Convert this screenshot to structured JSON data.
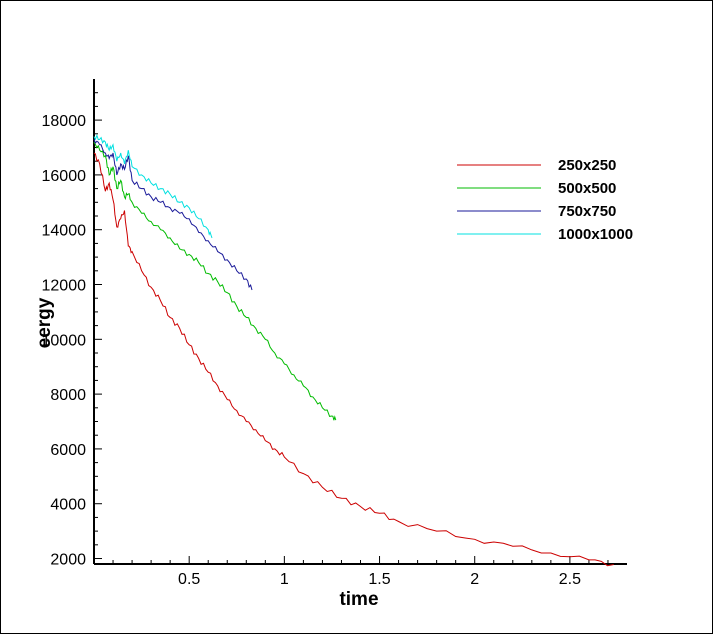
{
  "chart_data": {
    "type": "line",
    "title": "",
    "xlabel": "time",
    "ylabel": "eergy",
    "xlim": [
      0,
      2.8
    ],
    "ylim": [
      1800,
      19500
    ],
    "xticks": [
      0.5,
      1,
      1.5,
      2,
      2.5
    ],
    "xtick_labels": [
      "0.5",
      "1",
      "1.5",
      "2",
      "2.5"
    ],
    "yticks": [
      2000,
      4000,
      6000,
      8000,
      10000,
      12000,
      14000,
      16000,
      18000
    ],
    "ytick_labels": [
      "2000",
      "4000",
      "6000",
      "8000",
      "10000",
      "12000",
      "14000",
      "16000",
      "18000"
    ],
    "grid": false,
    "legend_position": "top-right",
    "series": [
      {
        "name": "250x250",
        "color": "#cc0000",
        "x": [
          0.0,
          0.03,
          0.06,
          0.08,
          0.1,
          0.12,
          0.14,
          0.16,
          0.18,
          0.2,
          0.25,
          0.3,
          0.35,
          0.4,
          0.45,
          0.5,
          0.55,
          0.6,
          0.65,
          0.7,
          0.75,
          0.8,
          0.85,
          0.9,
          0.95,
          1.0,
          1.1,
          1.2,
          1.3,
          1.4,
          1.5,
          1.6,
          1.8,
          2.0,
          2.2,
          2.4,
          2.6,
          2.73
        ],
        "y": [
          16800,
          16400,
          15400,
          15700,
          15100,
          14100,
          14400,
          14700,
          13400,
          13200,
          12500,
          11900,
          11400,
          10800,
          10400,
          9800,
          9300,
          8800,
          8300,
          7800,
          7400,
          7000,
          6700,
          6300,
          6000,
          5700,
          5100,
          4600,
          4200,
          3900,
          3650,
          3350,
          3000,
          2700,
          2450,
          2200,
          1950,
          1780
        ]
      },
      {
        "name": "500x500",
        "color": "#00bb00",
        "x": [
          0.0,
          0.03,
          0.06,
          0.08,
          0.1,
          0.12,
          0.14,
          0.16,
          0.18,
          0.2,
          0.25,
          0.3,
          0.35,
          0.4,
          0.45,
          0.5,
          0.55,
          0.6,
          0.65,
          0.7,
          0.75,
          0.8,
          0.85,
          0.9,
          0.95,
          1.0,
          1.05,
          1.1,
          1.15,
          1.2,
          1.25,
          1.27
        ],
        "y": [
          17200,
          16900,
          16700,
          16000,
          16300,
          15500,
          15800,
          15200,
          15300,
          15000,
          14600,
          14300,
          14000,
          13700,
          13300,
          13100,
          12800,
          12400,
          12100,
          11700,
          11200,
          10800,
          10400,
          10000,
          9500,
          9100,
          8700,
          8300,
          7900,
          7500,
          7200,
          7050
        ]
      },
      {
        "name": "750x750",
        "color": "#1a1a99",
        "x": [
          0.0,
          0.03,
          0.06,
          0.08,
          0.1,
          0.12,
          0.14,
          0.16,
          0.18,
          0.2,
          0.25,
          0.3,
          0.35,
          0.4,
          0.45,
          0.5,
          0.55,
          0.6,
          0.65,
          0.7,
          0.75,
          0.8,
          0.83
        ],
        "y": [
          17300,
          17100,
          16800,
          16600,
          16800,
          16000,
          16400,
          16200,
          16700,
          15800,
          15500,
          15200,
          15000,
          14800,
          14600,
          14400,
          13900,
          13600,
          13200,
          12900,
          12500,
          12200,
          11800
        ]
      },
      {
        "name": "1000x1000",
        "color": "#00e0e0",
        "x": [
          0.0,
          0.03,
          0.06,
          0.08,
          0.1,
          0.12,
          0.14,
          0.16,
          0.18,
          0.2,
          0.25,
          0.3,
          0.35,
          0.4,
          0.45,
          0.5,
          0.55,
          0.6,
          0.62
        ],
        "y": [
          17400,
          17300,
          17200,
          16900,
          17100,
          16500,
          16800,
          16400,
          16900,
          16300,
          16000,
          15700,
          15500,
          15300,
          15000,
          14800,
          14400,
          14000,
          13700
        ]
      }
    ]
  }
}
